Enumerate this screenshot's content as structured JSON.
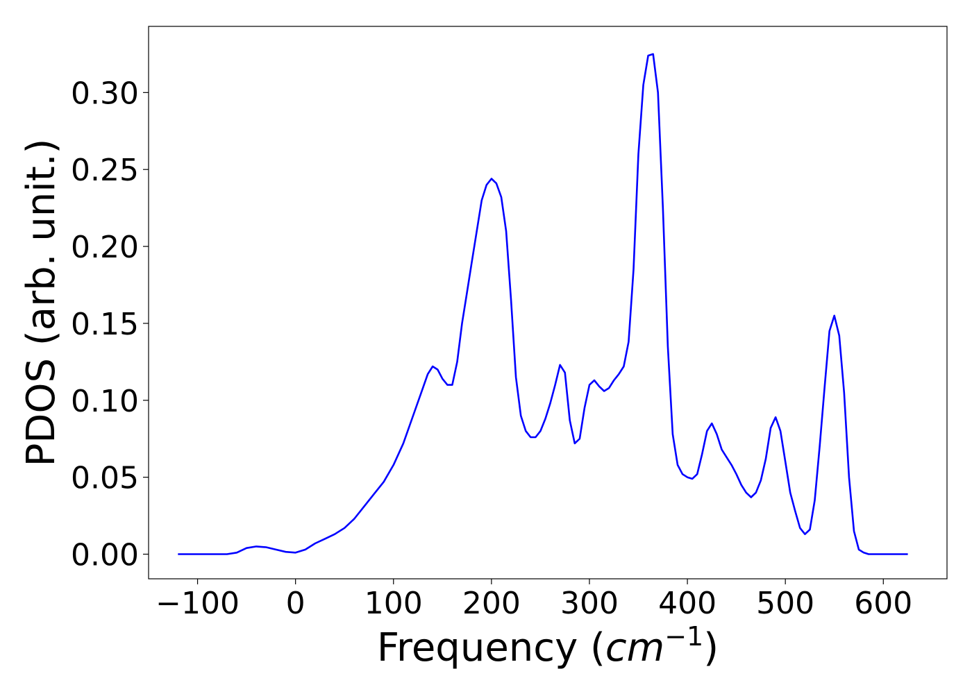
{
  "chart_data": {
    "type": "line",
    "title": "",
    "xlabel_main": "Frequency (",
    "xlabel_unit": "cm",
    "xlabel_exp": "−1",
    "xlabel_close": ")",
    "ylabel": "PDOS (arb. unit.)",
    "xlim": [
      -150,
      665
    ],
    "ylim": [
      -0.016,
      0.343
    ],
    "xticks": [
      -100,
      0,
      100,
      200,
      300,
      400,
      500,
      600
    ],
    "xtick_labels": [
      "−100",
      "0",
      "100",
      "200",
      "300",
      "400",
      "500",
      "600"
    ],
    "yticks": [
      0.0,
      0.05,
      0.1,
      0.15,
      0.2,
      0.25,
      0.3
    ],
    "ytick_labels": [
      "0.00",
      "0.05",
      "0.10",
      "0.15",
      "0.20",
      "0.25",
      "0.30"
    ],
    "grid": false,
    "series": [
      {
        "color": "#0000ff",
        "x": [
          -120,
          -70,
          -60,
          -50,
          -40,
          -30,
          -20,
          -10,
          0,
          10,
          20,
          30,
          40,
          50,
          60,
          70,
          80,
          90,
          100,
          110,
          120,
          130,
          135,
          140,
          145,
          150,
          155,
          160,
          165,
          170,
          175,
          180,
          185,
          190,
          195,
          200,
          205,
          210,
          215,
          220,
          225,
          230,
          235,
          240,
          245,
          250,
          255,
          260,
          265,
          270,
          275,
          280,
          285,
          290,
          295,
          300,
          305,
          310,
          315,
          320,
          325,
          330,
          335,
          340,
          345,
          350,
          355,
          360,
          365,
          370,
          375,
          380,
          385,
          390,
          395,
          400,
          405,
          410,
          415,
          420,
          425,
          430,
          435,
          440,
          445,
          450,
          455,
          460,
          465,
          470,
          475,
          480,
          485,
          490,
          495,
          500,
          505,
          510,
          515,
          520,
          525,
          530,
          535,
          540,
          545,
          550,
          555,
          560,
          565,
          570,
          575,
          580,
          585,
          600,
          625
        ],
        "y": [
          0.0,
          0.0,
          0.001,
          0.004,
          0.005,
          0.0045,
          0.003,
          0.0015,
          0.001,
          0.003,
          0.007,
          0.01,
          0.013,
          0.017,
          0.023,
          0.031,
          0.039,
          0.047,
          0.058,
          0.072,
          0.09,
          0.108,
          0.117,
          0.122,
          0.12,
          0.114,
          0.11,
          0.11,
          0.125,
          0.15,
          0.17,
          0.19,
          0.21,
          0.23,
          0.24,
          0.244,
          0.241,
          0.232,
          0.21,
          0.165,
          0.115,
          0.09,
          0.08,
          0.076,
          0.076,
          0.08,
          0.088,
          0.098,
          0.11,
          0.123,
          0.118,
          0.087,
          0.072,
          0.075,
          0.095,
          0.11,
          0.113,
          0.109,
          0.106,
          0.108,
          0.113,
          0.117,
          0.122,
          0.138,
          0.185,
          0.26,
          0.305,
          0.324,
          0.325,
          0.3,
          0.225,
          0.135,
          0.078,
          0.058,
          0.052,
          0.05,
          0.049,
          0.052,
          0.065,
          0.08,
          0.085,
          0.078,
          0.068,
          0.063,
          0.058,
          0.052,
          0.045,
          0.04,
          0.037,
          0.04,
          0.048,
          0.062,
          0.082,
          0.089,
          0.08,
          0.06,
          0.04,
          0.028,
          0.017,
          0.013,
          0.016,
          0.035,
          0.07,
          0.108,
          0.145,
          0.155,
          0.142,
          0.105,
          0.05,
          0.015,
          0.003,
          0.001,
          0.0,
          0.0,
          0.0
        ]
      }
    ]
  }
}
